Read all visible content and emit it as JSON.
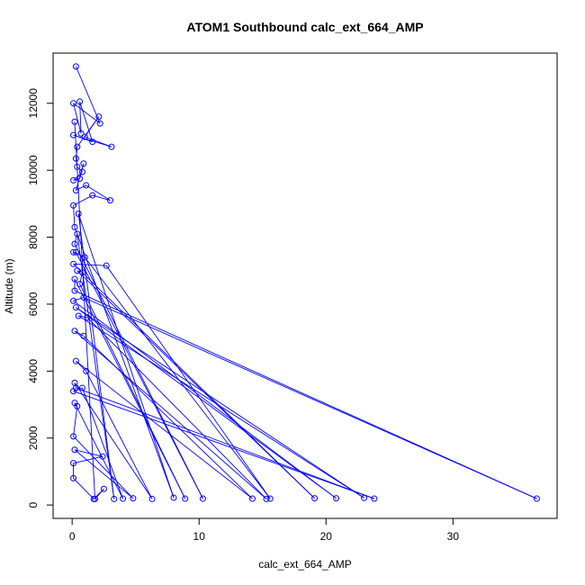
{
  "chart_data": {
    "type": "scatter",
    "title": "ATOM1 Southbound calc_ext_664_AMP",
    "xlabel": "calc_ext_664_AMP",
    "ylabel": "Altitude (m)",
    "xlim": [
      -1.5,
      38.2
    ],
    "ylim": [
      -400,
      13500
    ],
    "x_ticks": [
      0,
      10,
      20,
      30
    ],
    "y_ticks": [
      0,
      2000,
      4000,
      6000,
      8000,
      10000,
      12000
    ],
    "grid": false,
    "legend": "none",
    "series_color": "#0000ff",
    "points": [
      [
        0.3,
        13100
      ],
      [
        0.6,
        12050
      ],
      [
        0.1,
        12000
      ],
      [
        2.1,
        11600
      ],
      [
        0.2,
        11450
      ],
      [
        2.2,
        11400
      ],
      [
        0.7,
        11100
      ],
      [
        0.1,
        11050
      ],
      [
        1.0,
        11000
      ],
      [
        1.6,
        10850
      ],
      [
        0.4,
        10700
      ],
      [
        3.1,
        10700
      ],
      [
        0.3,
        10350
      ],
      [
        0.9,
        10200
      ],
      [
        0.4,
        10100
      ],
      [
        0.8,
        9950
      ],
      [
        0.6,
        9750
      ],
      [
        0.1,
        9700
      ],
      [
        1.1,
        9550
      ],
      [
        0.3,
        9400
      ],
      [
        1.6,
        9250
      ],
      [
        3.0,
        9100
      ],
      [
        0.1,
        8950
      ],
      [
        0.5,
        8700
      ],
      [
        0.2,
        8300
      ],
      [
        0.4,
        8100
      ],
      [
        0.2,
        7800
      ],
      [
        0.3,
        7550
      ],
      [
        0.1,
        7550
      ],
      [
        1.0,
        7400
      ],
      [
        0.1,
        7200
      ],
      [
        2.7,
        7150
      ],
      [
        0.4,
        7000
      ],
      [
        0.8,
        6950
      ],
      [
        0.2,
        6750
      ],
      [
        0.6,
        6600
      ],
      [
        0.2,
        6400
      ],
      [
        0.9,
        6200
      ],
      [
        0.1,
        6100
      ],
      [
        0.3,
        5900
      ],
      [
        0.5,
        5650
      ],
      [
        1.2,
        5600
      ],
      [
        0.2,
        5200
      ],
      [
        0.9,
        5050
      ],
      [
        0.3,
        4300
      ],
      [
        1.1,
        4000
      ],
      [
        0.2,
        3650
      ],
      [
        0.3,
        3500
      ],
      [
        0.1,
        3400
      ],
      [
        0.8,
        3500
      ],
      [
        0.2,
        3050
      ],
      [
        0.4,
        2950
      ],
      [
        0.1,
        2050
      ],
      [
        0.2,
        1650
      ],
      [
        0.1,
        1250
      ],
      [
        2.4,
        1450
      ],
      [
        0.1,
        800
      ],
      [
        2.5,
        480
      ],
      [
        1.7,
        180
      ],
      [
        1.8,
        180
      ],
      [
        3.3,
        180
      ],
      [
        4.0,
        190
      ],
      [
        4.8,
        200
      ],
      [
        6.3,
        180
      ],
      [
        8.0,
        220
      ],
      [
        8.9,
        190
      ],
      [
        10.3,
        190
      ],
      [
        14.2,
        190
      ],
      [
        15.3,
        180
      ],
      [
        15.6,
        190
      ],
      [
        19.1,
        200
      ],
      [
        20.8,
        200
      ],
      [
        23.0,
        210
      ],
      [
        23.8,
        190
      ],
      [
        36.6,
        190
      ]
    ],
    "path_order": [
      0,
      5,
      2,
      6,
      1,
      9,
      7,
      11,
      8,
      3,
      10,
      12,
      14,
      15,
      17,
      16,
      13,
      19,
      18,
      21,
      20,
      22,
      24,
      64,
      23,
      60,
      25,
      26,
      66,
      27,
      28,
      29,
      69,
      31,
      30,
      70,
      32,
      33,
      35,
      65,
      34,
      36,
      74,
      37,
      38,
      71,
      39,
      72,
      40,
      41,
      68,
      42,
      43,
      67,
      44,
      45,
      63,
      46,
      47,
      73,
      48,
      49,
      61,
      50,
      51,
      52,
      62,
      53,
      55,
      54,
      56,
      58,
      57,
      59,
      4
    ]
  }
}
